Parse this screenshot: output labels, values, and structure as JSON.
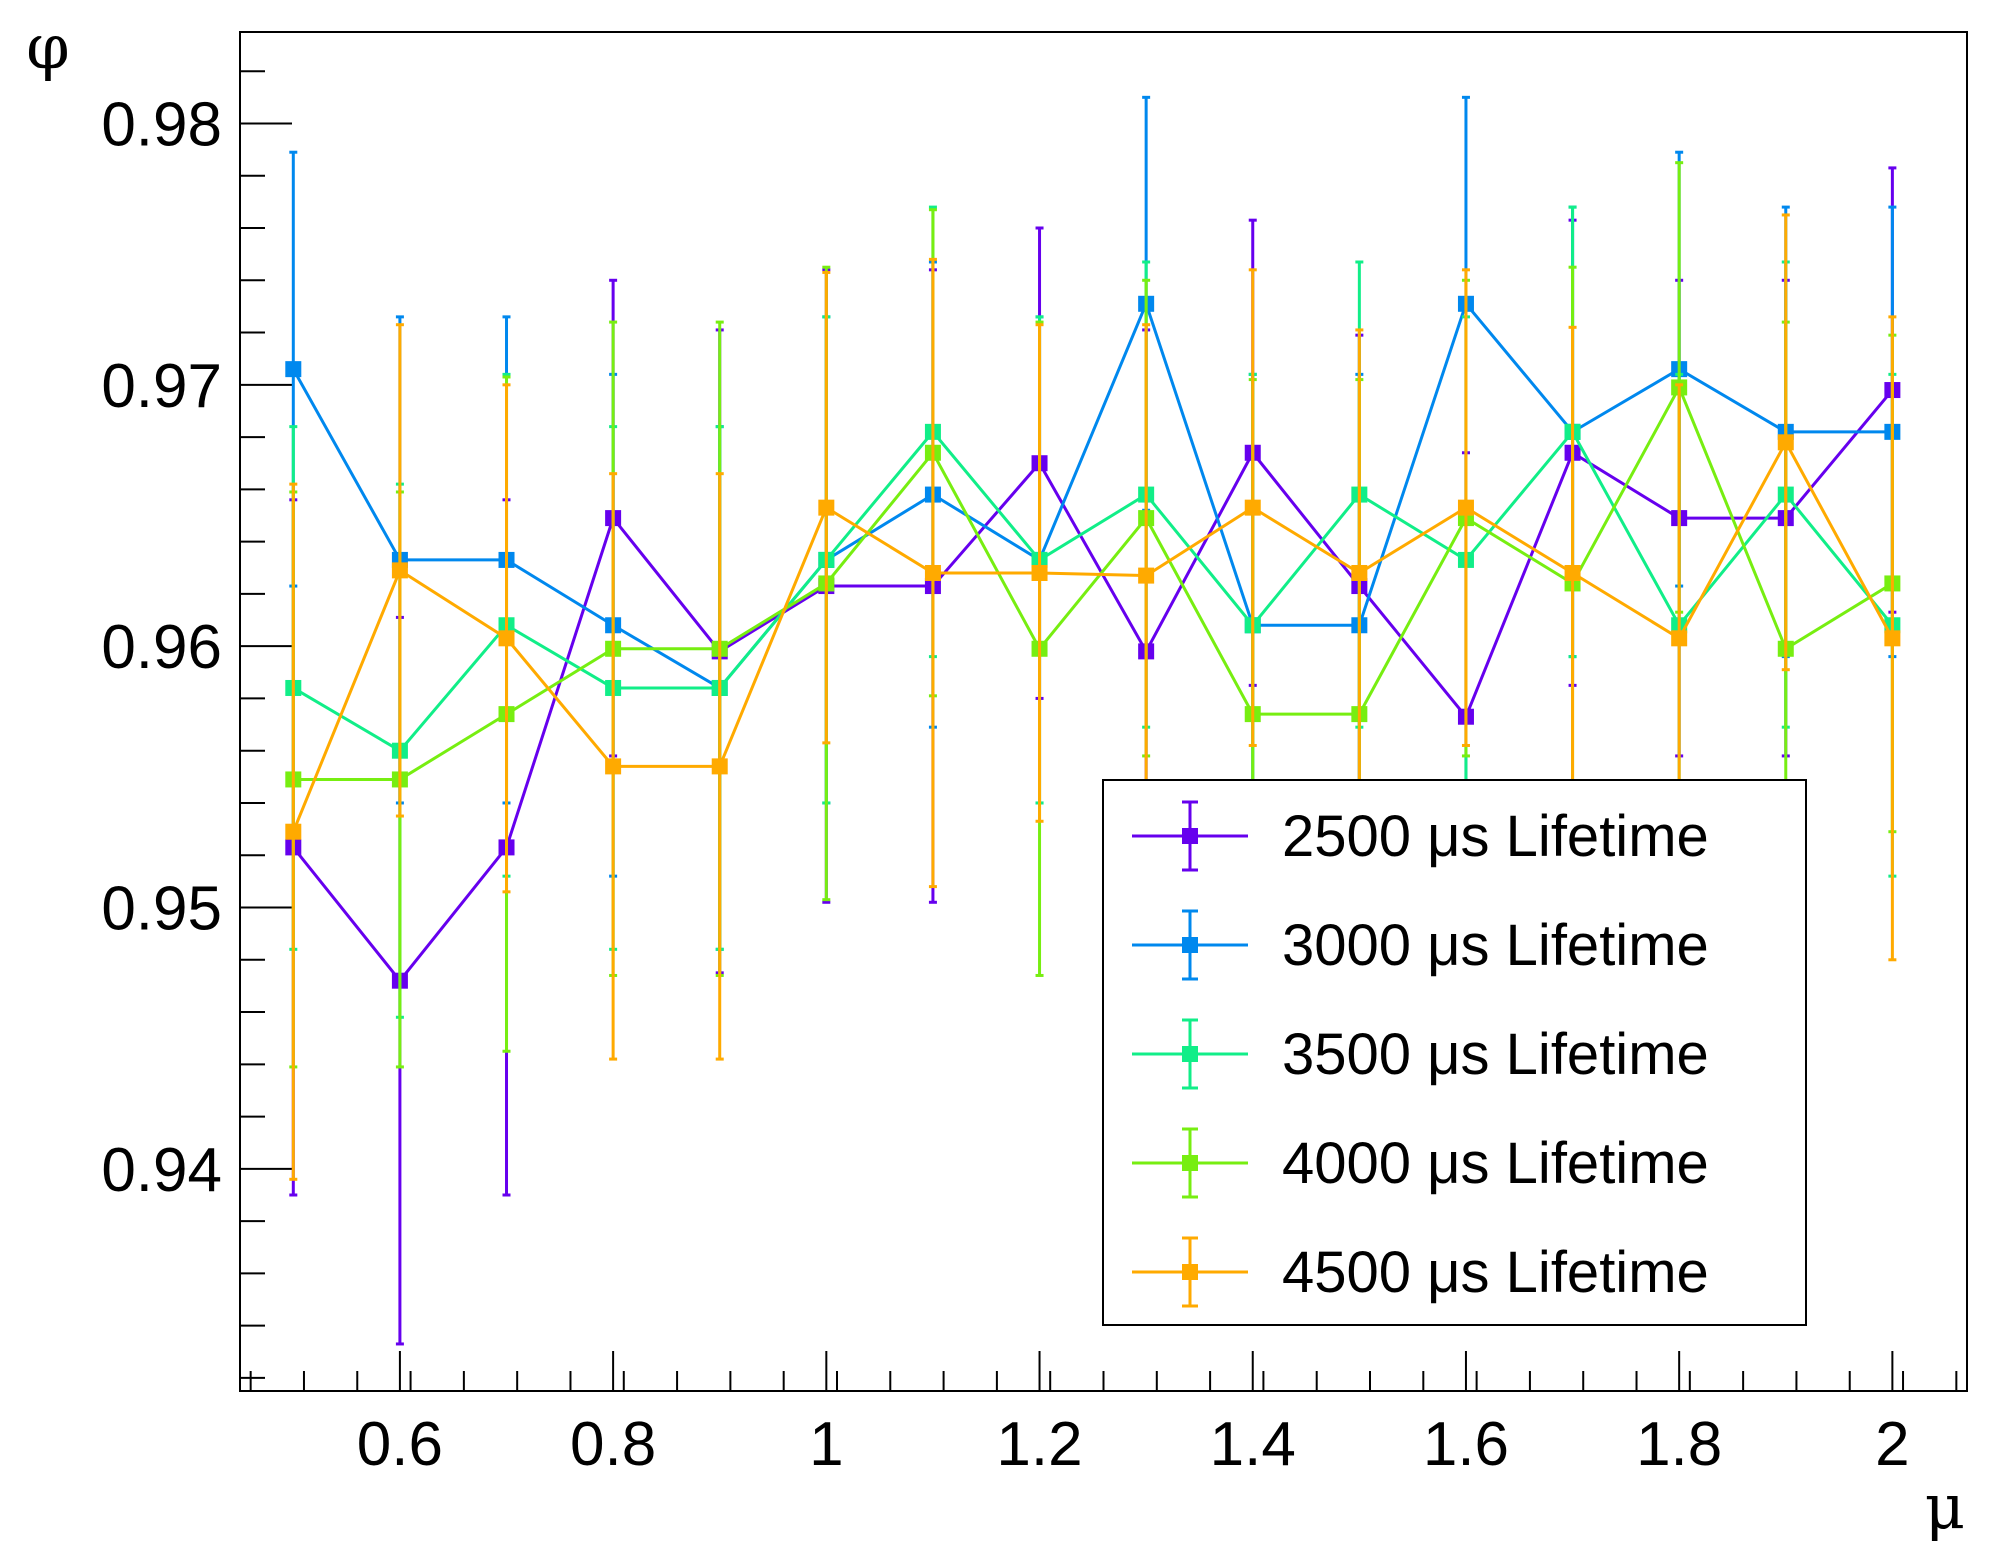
{
  "chart_data": {
    "type": "line",
    "xlabel": "μ",
    "ylabel": "φ",
    "xlim": [
      0.45,
      2.07
    ],
    "ylim": [
      0.9315,
      0.9835
    ],
    "x_ticks": [
      {
        "value": 0.6,
        "label": "0.6"
      },
      {
        "value": 0.8,
        "label": "0.8"
      },
      {
        "value": 1.0,
        "label": "1"
      },
      {
        "value": 1.2,
        "label": "1.2"
      },
      {
        "value": 1.4,
        "label": "1.4"
      },
      {
        "value": 1.6,
        "label": "1.6"
      },
      {
        "value": 1.8,
        "label": "1.8"
      },
      {
        "value": 2.0,
        "label": "2"
      }
    ],
    "y_ticks": [
      {
        "value": 0.94,
        "label": "0.94"
      },
      {
        "value": 0.95,
        "label": "0.95"
      },
      {
        "value": 0.96,
        "label": "0.96"
      },
      {
        "value": 0.97,
        "label": "0.97"
      },
      {
        "value": 0.98,
        "label": "0.98"
      }
    ],
    "grid": false,
    "legend_placement": "bottom-right",
    "x": [
      0.5,
      0.6,
      0.7,
      0.8,
      0.9,
      1.0,
      1.1,
      1.2,
      1.3,
      1.4,
      1.5,
      1.6,
      1.7,
      1.8,
      1.9,
      2.0
    ],
    "series": [
      {
        "name": "2500 μs Lifetime",
        "color": "#6600ee",
        "y": [
          0.9523,
          0.9472,
          0.9523,
          0.9649,
          0.9598,
          0.9623,
          0.9623,
          0.967,
          0.9598,
          0.9674,
          0.9623,
          0.9573,
          0.9674,
          0.9649,
          0.9649,
          0.9698
        ],
        "err": [
          0.0133,
          0.0139,
          0.0133,
          0.0091,
          0.0123,
          0.0121,
          0.0121,
          0.009,
          0.0123,
          0.0089,
          0.0096,
          0.0101,
          0.0089,
          0.0091,
          0.0091,
          0.0085
        ]
      },
      {
        "name": "3000 μs Lifetime",
        "color": "#0088ee",
        "y": [
          0.9706,
          0.9633,
          0.9633,
          0.9608,
          0.9584,
          0.9633,
          0.9658,
          0.9633,
          0.9731,
          0.9608,
          0.9608,
          0.9731,
          0.9682,
          0.9706,
          0.9682,
          0.9682
        ],
        "err": [
          0.0083,
          0.0093,
          0.0093,
          0.0096,
          0.01,
          0.0093,
          0.0089,
          0.0093,
          0.0079,
          0.0096,
          0.0096,
          0.0079,
          0.0086,
          0.0083,
          0.0086,
          0.0086
        ]
      },
      {
        "name": "3500 μs Lifetime",
        "color": "#11ee88",
        "y": [
          0.9584,
          0.956,
          0.9608,
          0.9584,
          0.9584,
          0.9633,
          0.9682,
          0.9633,
          0.9658,
          0.9608,
          0.9658,
          0.9633,
          0.9682,
          0.9608,
          0.9658,
          0.9608
        ],
        "err": [
          0.01,
          0.0102,
          0.0096,
          0.01,
          0.01,
          0.0093,
          0.0086,
          0.0093,
          0.0089,
          0.0096,
          0.0089,
          0.0093,
          0.0086,
          0.0096,
          0.0089,
          0.0096
        ]
      },
      {
        "name": "4000 μs Lifetime",
        "color": "#77ee11",
        "y": [
          0.9549,
          0.9549,
          0.9574,
          0.9599,
          0.9599,
          0.9624,
          0.9674,
          0.9599,
          0.9649,
          0.9574,
          0.9574,
          0.9649,
          0.9624,
          0.9699,
          0.9599,
          0.9624
        ],
        "err": [
          0.011,
          0.011,
          0.0129,
          0.0125,
          0.0125,
          0.0121,
          0.0093,
          0.0125,
          0.0091,
          0.0128,
          0.0128,
          0.0091,
          0.0121,
          0.0086,
          0.0125,
          0.0095
        ]
      },
      {
        "name": "4500 μs Lifetime",
        "color": "#ffaa00",
        "y": [
          0.9529,
          0.9629,
          0.9603,
          0.9554,
          0.9554,
          0.9653,
          0.9628,
          0.9628,
          0.9627,
          0.9653,
          0.9628,
          0.9653,
          0.9628,
          0.9603,
          0.9678,
          0.9603
        ],
        "err": [
          0.0133,
          0.0094,
          0.0097,
          0.0112,
          0.0112,
          0.009,
          0.012,
          0.0095,
          0.0096,
          0.0091,
          0.0093,
          0.0091,
          0.0094,
          0.0097,
          0.0087,
          0.0123
        ]
      }
    ]
  }
}
